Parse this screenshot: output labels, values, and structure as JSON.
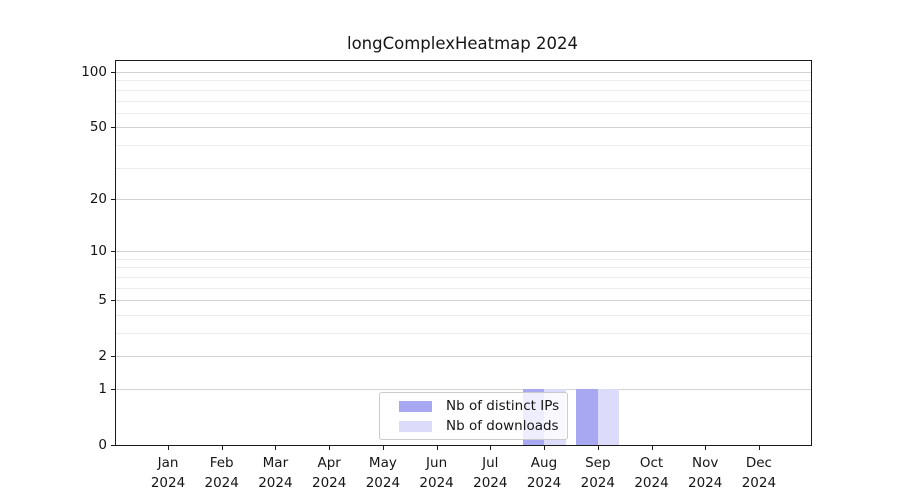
{
  "figure": {
    "title": "longComplexHeatmap 2024"
  },
  "chart_data": {
    "type": "bar",
    "title": "longComplexHeatmap 2024",
    "xlabel": "",
    "ylabel": "",
    "x_tick_months": [
      "Jan",
      "Feb",
      "Mar",
      "Apr",
      "May",
      "Jun",
      "Jul",
      "Aug",
      "Sep",
      "Oct",
      "Nov",
      "Dec"
    ],
    "x_tick_year": "2024",
    "categories": [
      "Jan 2024",
      "Feb 2024",
      "Mar 2024",
      "Apr 2024",
      "May 2024",
      "Jun 2024",
      "Jul 2024",
      "Aug 2024",
      "Sep 2024",
      "Oct 2024",
      "Nov 2024",
      "Dec 2024"
    ],
    "series": [
      {
        "name": "Nb of distinct IPs",
        "color": "#a7a7f2",
        "values": [
          0,
          0,
          0,
          0,
          0,
          0,
          0,
          1,
          1,
          0,
          0,
          0
        ]
      },
      {
        "name": "Nb of downloads",
        "color": "#dcdcfa",
        "values": [
          0,
          0,
          0,
          0,
          0,
          0,
          0,
          1,
          1,
          0,
          0,
          0
        ]
      }
    ],
    "yscale": "log1p",
    "ylim": [
      0,
      113
    ],
    "y_ticks": [
      100,
      50,
      20,
      10,
      5,
      2,
      1,
      0
    ],
    "y_tick_labels": [
      "100",
      "50",
      "20",
      "10",
      "5",
      "2",
      "1",
      "0"
    ],
    "y_minor_gridlines": [
      3,
      4,
      6,
      7,
      8,
      9,
      30,
      40,
      60,
      70,
      80,
      90
    ],
    "grid": "on",
    "legend_position": "lower-center-inside"
  },
  "colors": {
    "background": "#ffffff",
    "spine": "#1a1a1a",
    "grid_major": "#d4d4d4",
    "grid_minor": "#ececec",
    "bar_dark": "#a7a7f2",
    "bar_light": "#dcdcfa",
    "legend_border": "#cbcbcb"
  }
}
